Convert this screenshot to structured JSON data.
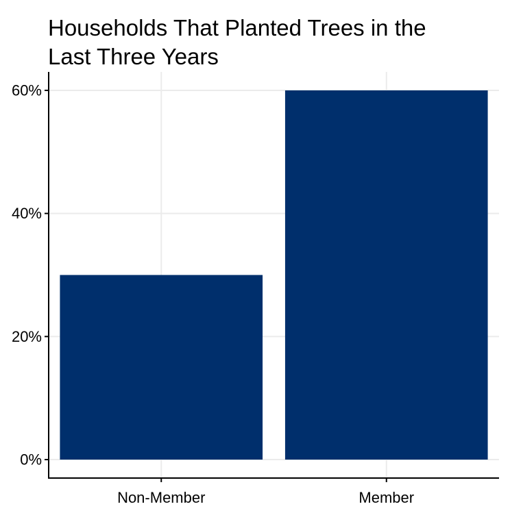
{
  "chart_data": {
    "type": "bar",
    "title_lines": [
      "Households That Planted Trees in the",
      "Last Three Years"
    ],
    "categories": [
      "Non-Member",
      "Member"
    ],
    "values": [
      30,
      60
    ],
    "y_ticks": [
      0,
      20,
      40,
      60
    ],
    "y_tick_labels": [
      "0%",
      "20%",
      "40%",
      "60%"
    ],
    "ylim": [
      -3,
      63
    ],
    "xlabel": "",
    "ylabel": "",
    "grid": true,
    "bar_color": "#002F6C",
    "grid_color": "#EBEBEB",
    "axis_color": "#000000"
  }
}
